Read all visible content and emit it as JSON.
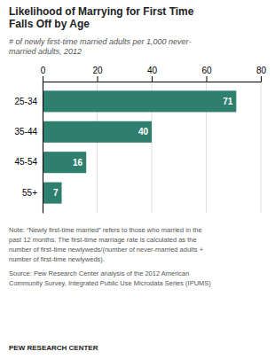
{
  "chart_data": {
    "type": "bar",
    "orientation": "horizontal",
    "title": [
      "Likelihood of Marrying for First Time",
      "Falls Off by Age"
    ],
    "subtitle": [
      "# of newly first-time married adults per 1,000 never-",
      "married adults, 2012"
    ],
    "categories": [
      "25-34",
      "35-44",
      "45-54",
      "55+"
    ],
    "values": [
      71,
      40,
      16,
      7
    ],
    "color": "#2e7f6e",
    "xlim": [
      0,
      80
    ],
    "xticks": [
      0,
      20,
      40,
      60,
      80
    ],
    "grid": true,
    "data_labels": true,
    "annotations": [
      "Note: “Newly first-time married” refers to those who married in the",
      "past 12 months. The first-time marriage rate is calculated as the",
      "number of first-time newlyweds/(number of never-married adults +",
      "number of first-time newlyweds).",
      "Source: Pew Research Center analysis of the 2012 American",
      "Community Survey, Integrated Public Use Microdata Series (IPUMS)",
      "PEW RESEARCH CENTER"
    ]
  }
}
